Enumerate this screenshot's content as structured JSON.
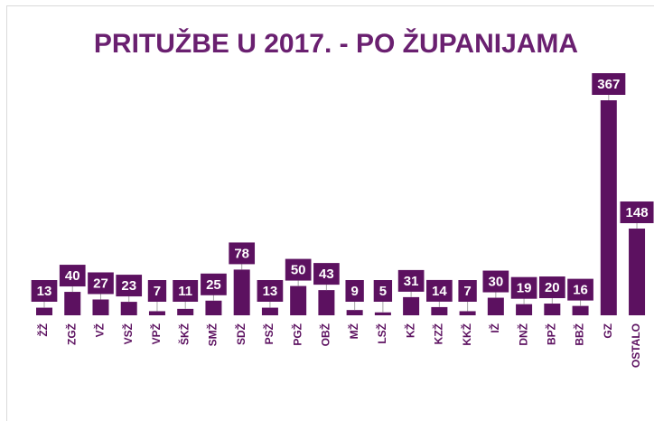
{
  "chart_data": {
    "type": "bar",
    "title": "PRITUŽBE U 2017. - PO ŽUPANIJAMA",
    "categories": [
      "ŽŽ",
      "ZGŽ",
      "VŽ",
      "VSŽ",
      "VPŽ",
      "ŠKŽ",
      "SMŽ",
      "SDŽ",
      "PSŽ",
      "PGŽ",
      "OBŽ",
      "MŽ",
      "LSŽ",
      "KŽ",
      "KZŽ",
      "KKŽ",
      "IŽ",
      "DNŽ",
      "BPŽ",
      "BBŽ",
      "GZ",
      "OSTALO"
    ],
    "values": [
      13,
      40,
      27,
      23,
      7,
      11,
      25,
      78,
      13,
      50,
      43,
      9,
      5,
      31,
      14,
      7,
      30,
      19,
      20,
      16,
      367,
      148
    ],
    "color": "#5c1160"
  }
}
